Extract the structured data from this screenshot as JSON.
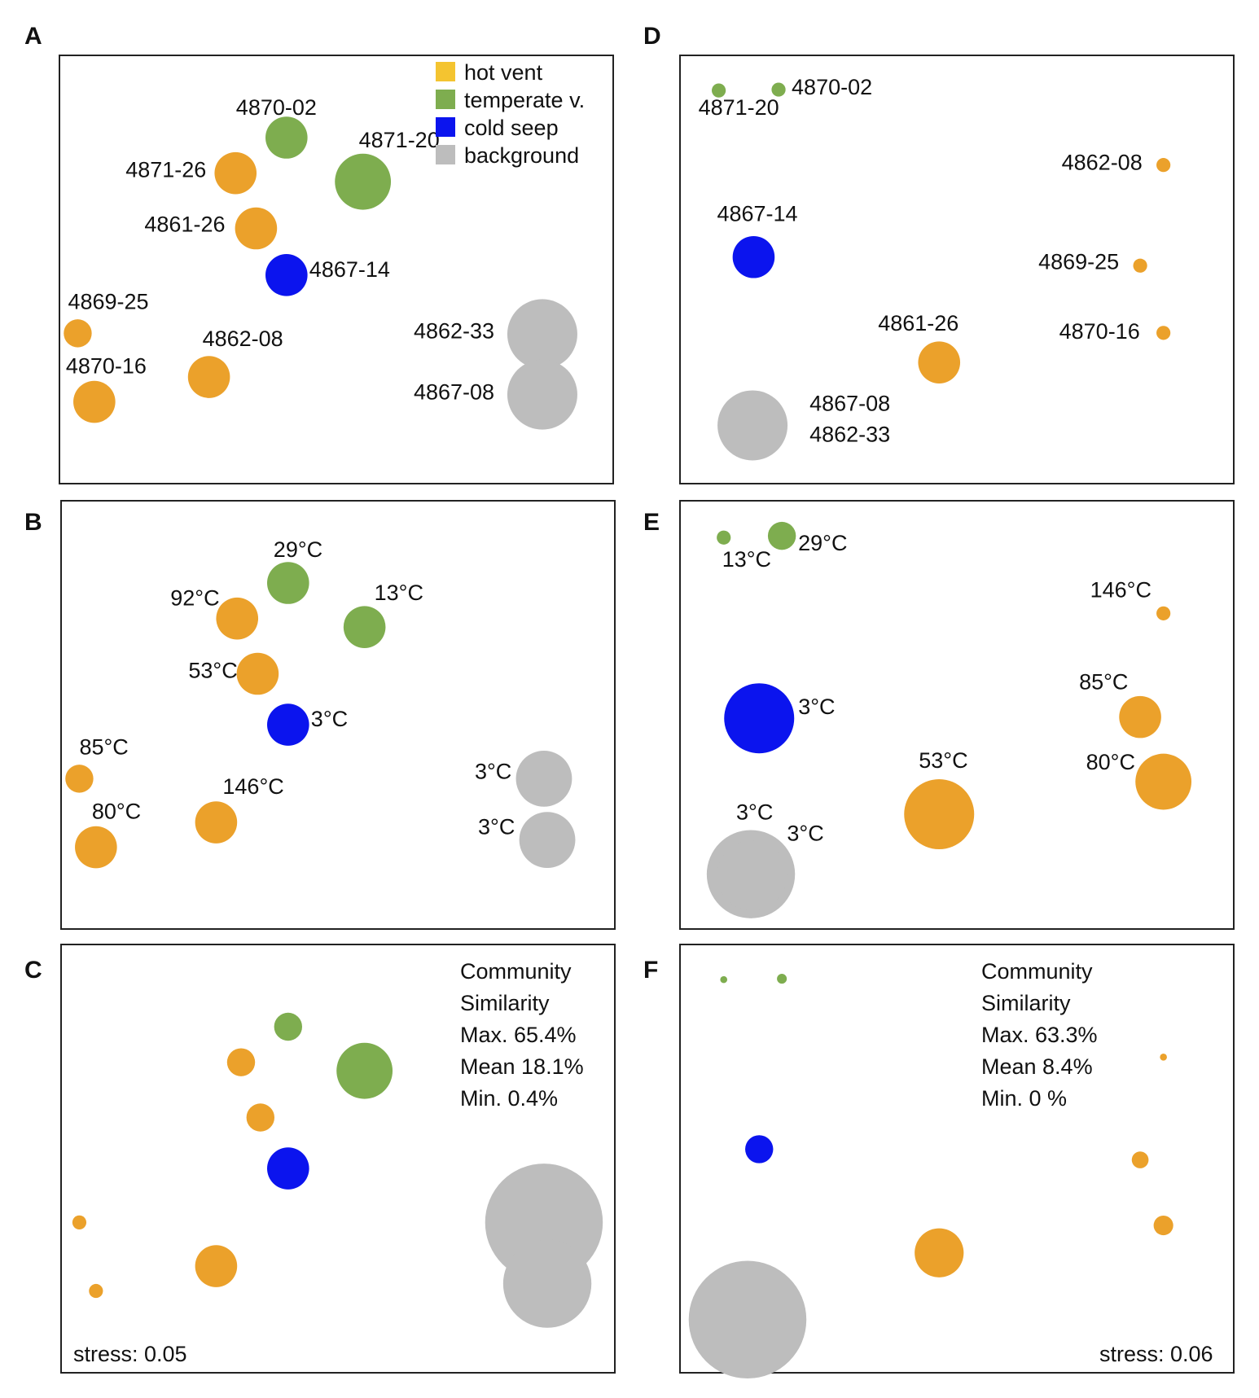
{
  "colors": {
    "hot vent": "#eba12b",
    "temperate v.": "#7ead4f",
    "cold seep": "#0b14ee",
    "background": "#bdbdbd",
    "legend_hot": "#f4c430"
  },
  "legend": [
    {
      "label": "hot vent",
      "color_key": "legend_hot"
    },
    {
      "label": "temperate v.",
      "color_key": "temperate v."
    },
    {
      "label": "cold seep",
      "color_key": "cold seep"
    },
    {
      "label": "background",
      "color_key": "background"
    }
  ],
  "chart_data": [
    {
      "panel": "A",
      "type": "scatter",
      "legend": true,
      "annotations": [],
      "points": [
        {
          "label": "4870-02",
          "cat": "temperate v.",
          "x": 0.41,
          "y": 0.808,
          "size": 3
        },
        {
          "label": "4871-20",
          "cat": "temperate v.",
          "x": 0.548,
          "y": 0.705,
          "size": 4
        },
        {
          "label": "4871-26",
          "cat": "hot vent",
          "x": 0.318,
          "y": 0.725,
          "size": 3
        },
        {
          "label": "4861-26",
          "cat": "hot vent",
          "x": 0.355,
          "y": 0.596,
          "size": 3
        },
        {
          "label": "4867-14",
          "cat": "cold seep",
          "x": 0.41,
          "y": 0.487,
          "size": 3
        },
        {
          "label": "4869-25",
          "cat": "hot vent",
          "x": 0.033,
          "y": 0.351,
          "size": 2
        },
        {
          "label": "4862-08",
          "cat": "hot vent",
          "x": 0.27,
          "y": 0.249,
          "size": 3
        },
        {
          "label": "4870-16",
          "cat": "hot vent",
          "x": 0.063,
          "y": 0.191,
          "size": 3
        },
        {
          "label": "4862-33",
          "cat": "background",
          "x": 0.872,
          "y": 0.349,
          "size": 5
        },
        {
          "label": "4867-08",
          "cat": "background",
          "x": 0.872,
          "y": 0.208,
          "size": 5
        }
      ]
    },
    {
      "panel": "B",
      "type": "scatter",
      "legend": false,
      "annotations": [],
      "points": [
        {
          "label": "29°C",
          "cat": "temperate v.",
          "x": 0.41,
          "y": 0.808,
          "size": 3
        },
        {
          "label": "13°C",
          "cat": "temperate v.",
          "x": 0.548,
          "y": 0.705,
          "size": 3
        },
        {
          "label": "92°C",
          "cat": "hot vent",
          "x": 0.318,
          "y": 0.725,
          "size": 3
        },
        {
          "label": "53°C",
          "cat": "hot vent",
          "x": 0.355,
          "y": 0.596,
          "size": 3
        },
        {
          "label": "3°C",
          "cat": "cold seep",
          "x": 0.41,
          "y": 0.477,
          "size": 3
        },
        {
          "label": "85°C",
          "cat": "hot vent",
          "x": 0.033,
          "y": 0.351,
          "size": 2
        },
        {
          "label": "146°C",
          "cat": "hot vent",
          "x": 0.28,
          "y": 0.249,
          "size": 3
        },
        {
          "label": "80°C",
          "cat": "hot vent",
          "x": 0.063,
          "y": 0.191,
          "size": 3
        },
        {
          "label": "3°C",
          "cat": "background",
          "x": 0.872,
          "y": 0.351,
          "size": 4
        },
        {
          "label": "3°C",
          "cat": "background",
          "x": 0.878,
          "y": 0.208,
          "size": 4
        }
      ]
    },
    {
      "panel": "C",
      "type": "scatter",
      "legend": false,
      "annotations": [
        "Community",
        "Similarity",
        "Max. 65.4%",
        "Mean 18.1%",
        "Min. 0.4%"
      ],
      "stress": "stress: 0.05",
      "points": [
        {
          "label": "",
          "cat": "temperate v.",
          "x": 0.41,
          "y": 0.808,
          "size": 2
        },
        {
          "label": "",
          "cat": "temperate v.",
          "x": 0.548,
          "y": 0.705,
          "size": 4
        },
        {
          "label": "",
          "cat": "hot vent",
          "x": 0.325,
          "y": 0.725,
          "size": 2
        },
        {
          "label": "",
          "cat": "hot vent",
          "x": 0.36,
          "y": 0.596,
          "size": 2
        },
        {
          "label": "",
          "cat": "cold seep",
          "x": 0.41,
          "y": 0.477,
          "size": 3
        },
        {
          "label": "",
          "cat": "hot vent",
          "x": 0.033,
          "y": 0.351,
          "size": 1
        },
        {
          "label": "",
          "cat": "hot vent",
          "x": 0.28,
          "y": 0.249,
          "size": 3
        },
        {
          "label": "",
          "cat": "hot vent",
          "x": 0.063,
          "y": 0.191,
          "size": 1
        },
        {
          "label": "",
          "cat": "background",
          "x": 0.872,
          "y": 0.351,
          "size": 8
        },
        {
          "label": "",
          "cat": "background",
          "x": 0.878,
          "y": 0.208,
          "size": 6
        }
      ]
    },
    {
      "panel": "D",
      "type": "scatter",
      "legend": false,
      "annotations": [],
      "points": [
        {
          "label": "4871-20",
          "cat": "temperate v.",
          "x": 0.07,
          "y": 0.918,
          "size": 1
        },
        {
          "label": "4870-02",
          "cat": "temperate v.",
          "x": 0.178,
          "y": 0.92,
          "size": 1
        },
        {
          "label": "4862-08",
          "cat": "hot vent",
          "x": 0.873,
          "y": 0.744,
          "size": 1
        },
        {
          "label": "4867-14",
          "cat": "cold seep",
          "x": 0.133,
          "y": 0.529,
          "size": 3
        },
        {
          "label": "4869-25",
          "cat": "hot vent",
          "x": 0.831,
          "y": 0.509,
          "size": 1
        },
        {
          "label": "4870-16",
          "cat": "hot vent",
          "x": 0.873,
          "y": 0.352,
          "size": 1
        },
        {
          "label": "4861-26",
          "cat": "hot vent",
          "x": 0.468,
          "y": 0.283,
          "size": 3
        },
        {
          "label": "4867-08\n4862-33",
          "cat": "background",
          "x": 0.131,
          "y": 0.136,
          "size": 5
        }
      ]
    },
    {
      "panel": "E",
      "type": "scatter",
      "legend": false,
      "annotations": [],
      "points": [
        {
          "label": "13°C",
          "cat": "temperate v.",
          "x": 0.079,
          "y": 0.914,
          "size": 1
        },
        {
          "label": "29°C",
          "cat": "temperate v.",
          "x": 0.184,
          "y": 0.918,
          "size": 2
        },
        {
          "label": "146°C",
          "cat": "hot vent",
          "x": 0.873,
          "y": 0.737,
          "size": 1
        },
        {
          "label": "3°C",
          "cat": "cold seep",
          "x": 0.143,
          "y": 0.492,
          "size": 5
        },
        {
          "label": "85°C",
          "cat": "hot vent",
          "x": 0.831,
          "y": 0.495,
          "size": 3
        },
        {
          "label": "80°C",
          "cat": "hot vent",
          "x": 0.873,
          "y": 0.344,
          "size": 4
        },
        {
          "label": "53°C",
          "cat": "hot vent",
          "x": 0.468,
          "y": 0.268,
          "size": 5
        },
        {
          "label": "3°C",
          "cat": "background",
          "x": 0.128,
          "y": 0.128,
          "size": 6
        },
        {
          "label": "3°C",
          "cat": "background",
          "x": 0.13,
          "y": 0.125,
          "size": 5
        }
      ]
    },
    {
      "panel": "F",
      "type": "scatter",
      "legend": false,
      "annotations": [
        "Community",
        "Similarity",
        "Max. 63.3%",
        "Mean 8.4%",
        "Min. 0 %"
      ],
      "stress": "stress: 0.06",
      "points": [
        {
          "label": "",
          "cat": "temperate v.",
          "x": 0.079,
          "y": 0.918,
          "size": 0.5
        },
        {
          "label": "",
          "cat": "temperate v.",
          "x": 0.184,
          "y": 0.92,
          "size": 0.7
        },
        {
          "label": "",
          "cat": "hot vent",
          "x": 0.873,
          "y": 0.737,
          "size": 0.5
        },
        {
          "label": "",
          "cat": "cold seep",
          "x": 0.143,
          "y": 0.522,
          "size": 2
        },
        {
          "label": "",
          "cat": "hot vent",
          "x": 0.831,
          "y": 0.497,
          "size": 1.2
        },
        {
          "label": "",
          "cat": "hot vent",
          "x": 0.873,
          "y": 0.344,
          "size": 1.4
        },
        {
          "label": "",
          "cat": "hot vent",
          "x": 0.468,
          "y": 0.28,
          "size": 3.5
        },
        {
          "label": "",
          "cat": "background",
          "x": 0.122,
          "y": 0.124,
          "size": 8
        }
      ]
    }
  ]
}
